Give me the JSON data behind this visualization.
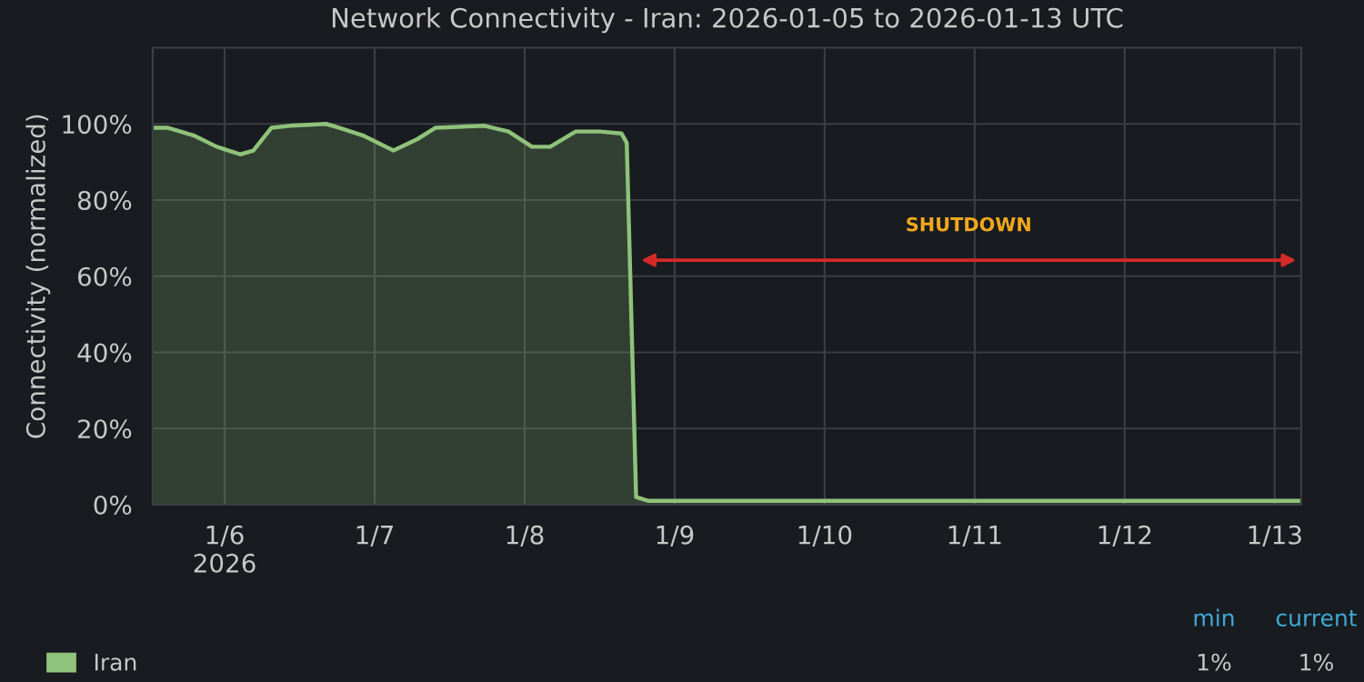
{
  "chart_data": {
    "type": "area",
    "title": "Network Connectivity - Iran: 2026-01-05 to 2026-01-13 UTC",
    "ylabel": "Connectivity (normalized)",
    "x": [
      "2026-01-05T12:30",
      "2026-01-05T14:50",
      "2026-01-05T19:00",
      "2026-01-05T22:45",
      "2026-01-06T02:30",
      "2026-01-06T04:35",
      "2026-01-06T07:30",
      "2026-01-06T10:25",
      "2026-01-06T16:15",
      "2026-01-06T18:15",
      "2026-01-06T22:05",
      "2026-01-07T03:00",
      "2026-01-07T06:50",
      "2026-01-07T09:45",
      "2026-01-07T17:35",
      "2026-01-07T21:25",
      "2026-01-08T01:10",
      "2026-01-08T04:05",
      "2026-01-08T08:10",
      "2026-01-08T12:00",
      "2026-01-08T15:30",
      "2026-01-08T16:20",
      "2026-01-08T17:50",
      "2026-01-08T19:50",
      "2026-01-11T00:00",
      "2026-01-13T04:15"
    ],
    "series": [
      {
        "name": "Iran",
        "color": "#8fc27a",
        "values": [
          99,
          99,
          97,
          94,
          92,
          93,
          99,
          99.5,
          100,
          99,
          97,
          93,
          96,
          99,
          99.5,
          98,
          94,
          94,
          98,
          98,
          97.5,
          95,
          2,
          1,
          1,
          1
        ]
      }
    ],
    "xlim": [
      "2026-01-05T12:30",
      "2026-01-13T04:15"
    ],
    "xticks": [
      {
        "value": "2026-01-06",
        "label": "1/6\n2026"
      },
      {
        "value": "2026-01-07",
        "label": "1/7"
      },
      {
        "value": "2026-01-08",
        "label": "1/8"
      },
      {
        "value": "2026-01-09",
        "label": "1/9"
      },
      {
        "value": "2026-01-10",
        "label": "1/10"
      },
      {
        "value": "2026-01-11",
        "label": "1/11"
      },
      {
        "value": "2026-01-12",
        "label": "1/12"
      },
      {
        "value": "2026-01-13",
        "label": "1/13"
      }
    ],
    "ylim": [
      0,
      120
    ],
    "yticks": [
      {
        "value": 0,
        "label": "0%"
      },
      {
        "value": 20,
        "label": "20%"
      },
      {
        "value": 40,
        "label": "40%"
      },
      {
        "value": 60,
        "label": "60%"
      },
      {
        "value": 80,
        "label": "80%"
      },
      {
        "value": 100,
        "label": "100%"
      }
    ],
    "annotations": [
      "SHUTDOWN",
      "min",
      "current",
      "1%",
      "1%"
    ],
    "grid": true,
    "legend": "bottom",
    "marker": "none",
    "line_style": "solid"
  }
}
